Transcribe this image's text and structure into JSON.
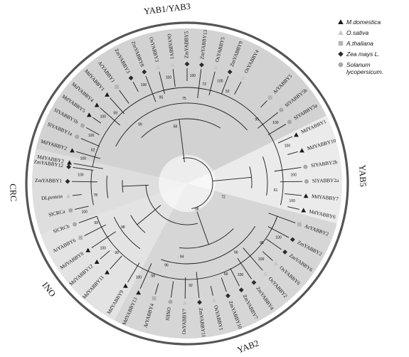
{
  "legend": [
    {
      "label": "M.domestica",
      "symbol": "triangle",
      "color": "#1a1a1a"
    },
    {
      "label": "O.sativa",
      "symbol": "triangle",
      "color": "#c8c8c8"
    },
    {
      "label": "A.thaliana",
      "symbol": "square",
      "color": "#b4b4b4"
    },
    {
      "label": "Zea mays L.",
      "symbol": "diamond",
      "color": "#2a2a2a"
    },
    {
      "label": "Solanum lycopersicum.",
      "symbol": "circle",
      "color": "#a8a8a8"
    }
  ],
  "clades": [
    {
      "name": "YAB1/YAB3",
      "start": -80,
      "end": 67,
      "fill": "#d2d2d2"
    },
    {
      "name": "YAB5",
      "start": 67,
      "end": 108,
      "fill": "#ebebeb"
    },
    {
      "name": "YAB2",
      "start": 108,
      "end": 211,
      "fill": "#d6d6d6"
    },
    {
      "name": "INO",
      "start": 211,
      "end": 254,
      "fill": "#e3e3e3"
    },
    {
      "name": "CRC",
      "start": 254,
      "end": 280,
      "fill": "#dedede"
    }
  ],
  "leaves": [
    {
      "name": "MdYABBY2",
      "species": "M.domestica",
      "angle": -80
    },
    {
      "name": "MdYABBY2",
      "species": "M.domestica",
      "angle": -74
    },
    {
      "name": "SlYABBY1a",
      "species": "Solanum lycopersicum.",
      "angle": -67
    },
    {
      "name": "SlYABBY1b",
      "species": "Solanum lycopersicum.",
      "angle": -61
    },
    {
      "name": "MdYABBY5",
      "species": "M.domestica",
      "angle": -55
    },
    {
      "name": "MdYABBY4",
      "species": "M.domestica",
      "angle": -49
    },
    {
      "name": "MdYABBY1",
      "species": "M.domestica",
      "angle": -42
    },
    {
      "name": "AtYABBY1",
      "species": "A.thaliana",
      "angle": -36
    },
    {
      "name": "ZmYABBY3",
      "species": "Zea mays L.",
      "angle": -28
    },
    {
      "name": "ZmYABBY8",
      "species": "Zea mays L.",
      "angle": -21
    },
    {
      "name": "OsYABBY3",
      "species": "O.sativa",
      "angle": -14
    },
    {
      "name": "OsYABBY1",
      "species": "O.sativa",
      "angle": -7
    },
    {
      "name": "ZmYABBY5",
      "species": "Zea mays L.",
      "angle": 0
    },
    {
      "name": "ZmYABBY13",
      "species": "Zea mays L.",
      "angle": 7
    },
    {
      "name": "OsYABBY5",
      "species": "O.sativa",
      "angle": 14
    },
    {
      "name": "ZmYABBY9",
      "species": "Zea mays L.",
      "angle": 21
    },
    {
      "name": "OsYABBY4",
      "species": "O.sativa",
      "angle": 28
    },
    {
      "name": "AtYABBY5",
      "species": "A.thaliana",
      "angle": 44
    },
    {
      "name": "SlYABBY5b",
      "species": "Solanum lycopersicum.",
      "angle": 52
    },
    {
      "name": "SlYABBY5a",
      "species": "Solanum lycopersicum.",
      "angle": 59
    },
    {
      "name": "MdYABBY1",
      "species": "M.domestica",
      "angle": 66
    },
    {
      "name": "MdYABBY10",
      "species": "M.domestica",
      "angle": 74
    },
    {
      "name": "SlYABBY2b",
      "species": "Solanum lycopersicum.",
      "angle": 82
    },
    {
      "name": "SlYABBY2a",
      "species": "Solanum lycopersicum.",
      "angle": 89
    },
    {
      "name": "MdYABBY7",
      "species": "M.domestica",
      "angle": 96
    },
    {
      "name": "MdYABBY6",
      "species": "M.domestica",
      "angle": 103
    },
    {
      "name": "AtYABBY2",
      "species": "A.thaliana",
      "angle": 110
    },
    {
      "name": "ZmYABBY2",
      "species": "Zea mays L.",
      "angle": 118
    },
    {
      "name": "ZmYABBY6",
      "species": "Zea mays L.",
      "angle": 125
    },
    {
      "name": "OsYABBY6",
      "species": "O.sativa",
      "angle": 132
    },
    {
      "name": "OsYABBY2",
      "species": "O.sativa",
      "angle": 139
    },
    {
      "name": "ZmYABBY4",
      "species": "Zea mays L.",
      "angle": 146
    },
    {
      "name": "ZmYABBY7",
      "species": "Zea mays L.",
      "angle": 153
    },
    {
      "name": "ZmYABBY10",
      "species": "Zea mays L.",
      "angle": 160
    },
    {
      "name": "OsYABBY1",
      "species": "O.sativa",
      "angle": 167
    },
    {
      "name": "ZmYABBY11",
      "species": "Zea mays L.",
      "angle": 174
    },
    {
      "name": "OsYABBY7",
      "species": "O.sativa",
      "angle": 181
    },
    {
      "name": "SlINO",
      "species": "Solanum lycopersicum.",
      "angle": 188
    },
    {
      "name": "AtYABBY4",
      "species": "A.thaliana",
      "angle": 196
    },
    {
      "name": "MdYABBY13",
      "species": "M.domestica",
      "angle": 204
    },
    {
      "name": "MdYABBY9",
      "species": "M.domestica",
      "angle": 211
    },
    {
      "name": "MdYABBY11",
      "species": "M.domestica",
      "angle": 222
    },
    {
      "name": "MdYABBY12",
      "species": "M.domestica",
      "angle": 229
    },
    {
      "name": "MdYABBY8",
      "species": "M.domestica",
      "angle": 236
    },
    {
      "name": "AtYABBY6",
      "species": "A.thaliana",
      "angle": 243
    },
    {
      "name": "SlCRCb",
      "species": "Solanum lycopersicum.",
      "angle": 250
    },
    {
      "name": "SlCRCa",
      "species": "Solanum lycopersicum.",
      "angle": 257
    },
    {
      "name": "DLprotein",
      "species": "O.sativa",
      "angle": 264
    },
    {
      "name": "ZmYABBY1",
      "species": "Zea mays L.",
      "angle": 271
    },
    {
      "name": "ZmYABBY12",
      "species": "Zea mays L.",
      "angle": 278
    }
  ],
  "bootstrap": [
    {
      "value": "100",
      "angle": -77,
      "r": 150
    },
    {
      "value": "62",
      "angle": -71,
      "r": 140
    },
    {
      "value": "100",
      "angle": -64,
      "r": 150
    },
    {
      "value": "100",
      "angle": -52,
      "r": 150
    },
    {
      "value": "59",
      "angle": -46,
      "r": 140
    },
    {
      "value": "100",
      "angle": -24,
      "r": 150
    },
    {
      "value": "100",
      "angle": -10,
      "r": 150
    },
    {
      "value": "95",
      "angle": -17,
      "r": 125
    },
    {
      "value": "75",
      "angle": -2,
      "r": 118
    },
    {
      "value": "100",
      "angle": 3,
      "r": 150
    },
    {
      "value": "72",
      "angle": 10,
      "r": 140
    },
    {
      "value": "100",
      "angle": 18,
      "r": 150
    },
    {
      "value": "52",
      "angle": 24,
      "r": 140
    },
    {
      "value": "99",
      "angle": -39,
      "r": 105
    },
    {
      "value": "58",
      "angle": -12,
      "r": 80
    },
    {
      "value": "100",
      "angle": 56,
      "r": 150
    },
    {
      "value": "95",
      "angle": 48,
      "r": 132
    },
    {
      "value": "100",
      "angle": 70,
      "r": 150
    },
    {
      "value": "100",
      "angle": 86,
      "r": 150
    },
    {
      "value": "100",
      "angle": 100,
      "r": 150
    },
    {
      "value": "61",
      "angle": 95,
      "r": 125
    },
    {
      "value": "100",
      "angle": 121,
      "r": 150
    },
    {
      "value": "100",
      "angle": 136,
      "r": 150
    },
    {
      "value": "98",
      "angle": 129,
      "r": 135
    },
    {
      "value": "100",
      "angle": 150,
      "r": 150
    },
    {
      "value": "69",
      "angle": 157,
      "r": 140
    },
    {
      "value": "96",
      "angle": 145,
      "r": 120
    },
    {
      "value": "92",
      "angle": 178,
      "r": 145
    },
    {
      "value": "100",
      "angle": 207,
      "r": 150
    },
    {
      "value": "58",
      "angle": 200,
      "r": 140
    },
    {
      "value": "96",
      "angle": 194,
      "r": 120
    },
    {
      "value": "94",
      "angle": 184,
      "r": 105
    },
    {
      "value": "72",
      "angle": 112,
      "r": 55
    },
    {
      "value": "98",
      "angle": 160,
      "r": 40
    },
    {
      "value": "100",
      "angle": 232,
      "r": 150
    },
    {
      "value": "99",
      "angle": 225,
      "r": 140
    },
    {
      "value": "100",
      "angle": 254,
      "r": 150
    },
    {
      "value": "99",
      "angle": 246,
      "r": 140
    },
    {
      "value": "100",
      "angle": 274,
      "r": 150
    },
    {
      "value": "78",
      "angle": 262,
      "r": 130
    },
    {
      "value": "98",
      "angle": 235,
      "r": 110
    }
  ],
  "colors": {
    "line": "#1a1a1a",
    "arc": "#555555",
    "text": "#111111"
  }
}
